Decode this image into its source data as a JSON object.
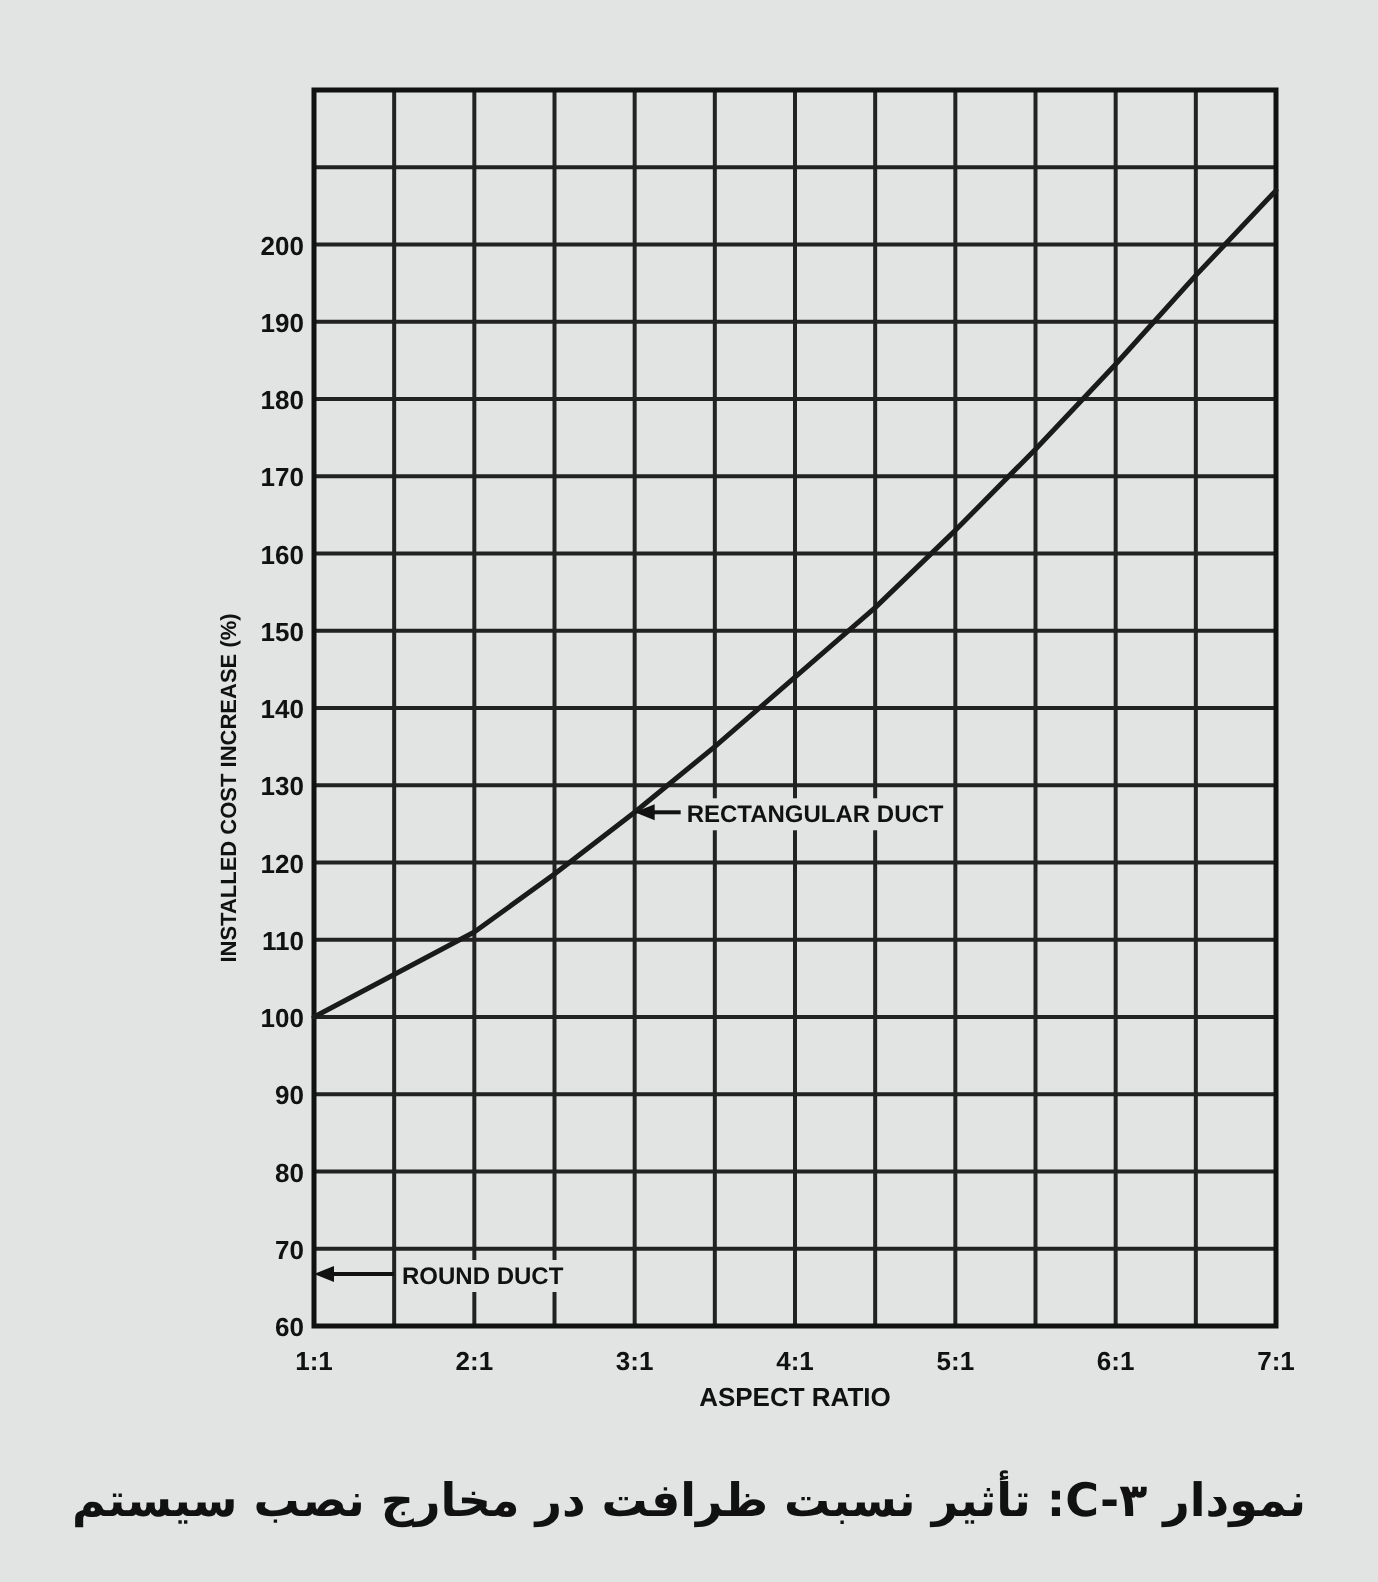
{
  "chart_data": {
    "type": "line",
    "title": "نمودار C-۳: تأثیر نسبت ظرافت در مخارج نصب سیستم",
    "xlabel": "ASPECT RATIO",
    "ylabel": "INSTALLED COST INCREASE (%)",
    "categories": [
      "1:1",
      null,
      "2:1",
      null,
      "3:1",
      null,
      "4:1",
      null,
      "5:1",
      null,
      "6:1",
      null,
      "7:1"
    ],
    "series": [
      {
        "color": "#1a1a1a",
        "values": [
          100,
          105.5,
          111,
          118.5,
          126.5,
          135,
          144,
          153,
          163,
          173.5,
          184.5,
          196,
          207
        ]
      }
    ],
    "ylim": [
      60,
      220
    ],
    "yticks": [
      60,
      70,
      80,
      90,
      100,
      110,
      120,
      130,
      140,
      150,
      160,
      170,
      180,
      190,
      200,
      {
        "value": 210,
        "label": null
      },
      {
        "value": 220,
        "label": null
      }
    ],
    "grid": true,
    "marker": "none",
    "line_style": "solid",
    "annotations": [
      {
        "text": "RECTANGULAR DUCT",
        "x": "3:1",
        "y": 126.5
      },
      "ROUND DUCT"
    ]
  }
}
